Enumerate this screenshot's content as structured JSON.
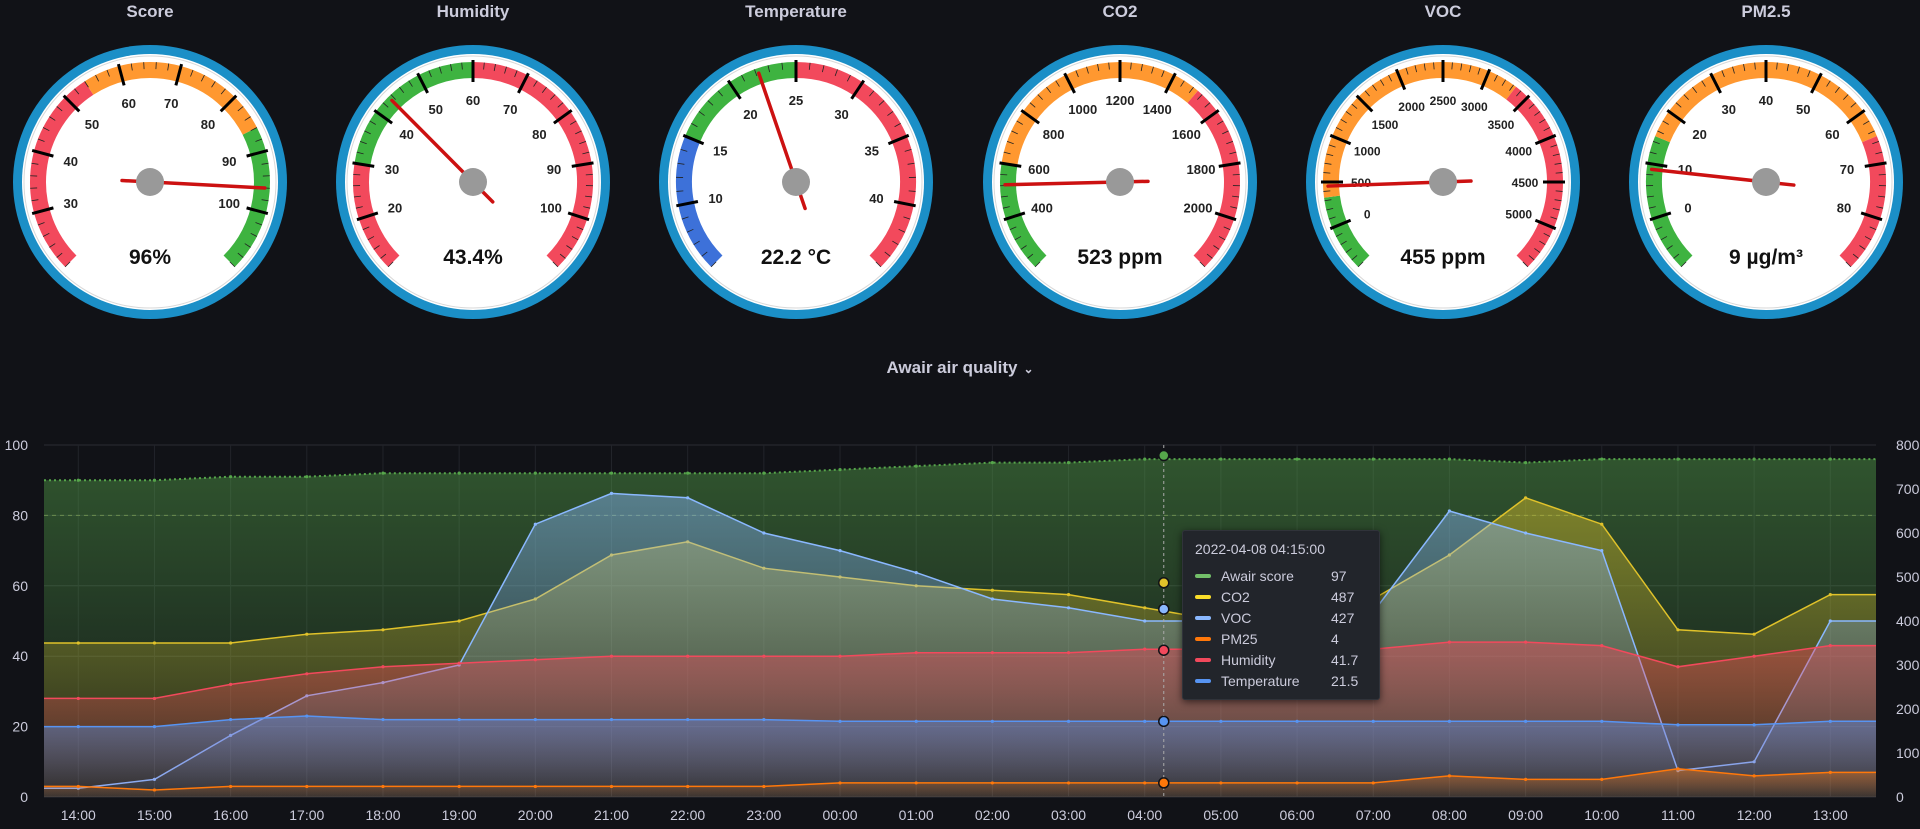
{
  "gauges": [
    {
      "key": "score",
      "title": "Score",
      "display": "96%",
      "value": 96,
      "min": 20,
      "max": 110,
      "labels": [
        30,
        40,
        50,
        60,
        70,
        80,
        90,
        100
      ],
      "bands": [
        {
          "from": 20,
          "to": 54,
          "color": "#f2495c"
        },
        {
          "from": 54,
          "to": 86,
          "color": "#ff9830"
        },
        {
          "from": 86,
          "to": 110,
          "color": "#3eb340"
        }
      ]
    },
    {
      "key": "humidity",
      "title": "Humidity",
      "display": "43.4%",
      "value": 43.4,
      "min": 10,
      "max": 110,
      "labels": [
        20,
        30,
        40,
        50,
        60,
        70,
        80,
        90,
        100
      ],
      "bands": [
        {
          "from": 10,
          "to": 30,
          "color": "#f2495c"
        },
        {
          "from": 30,
          "to": 60,
          "color": "#3eb340"
        },
        {
          "from": 60,
          "to": 110,
          "color": "#f2495c"
        }
      ]
    },
    {
      "key": "temperature",
      "title": "Temperature",
      "display": "22.2 °C",
      "value": 22.2,
      "min": 5,
      "max": 45,
      "labels": [
        10,
        15,
        20,
        25,
        30,
        35,
        40
      ],
      "bands": [
        {
          "from": 5,
          "to": 15,
          "color": "#3d71d9"
        },
        {
          "from": 15,
          "to": 25,
          "color": "#3eb340"
        },
        {
          "from": 25,
          "to": 45,
          "color": "#f2495c"
        }
      ]
    },
    {
      "key": "co2",
      "title": "CO2",
      "display": "523 ppm",
      "value": 523,
      "min": 200,
      "max": 2200,
      "labels": [
        400,
        600,
        800,
        1000,
        1200,
        1400,
        1600,
        1800,
        2000
      ],
      "bands": [
        {
          "from": 200,
          "to": 600,
          "color": "#3eb340"
        },
        {
          "from": 600,
          "to": 1500,
          "color": "#ff9830"
        },
        {
          "from": 1500,
          "to": 2200,
          "color": "#f2495c"
        }
      ]
    },
    {
      "key": "voc",
      "title": "VOC",
      "display": "455 ppm",
      "value": 455,
      "min": -500,
      "max": 5500,
      "labels": [
        0,
        500,
        1000,
        1500,
        2000,
        2500,
        3000,
        3500,
        4000,
        4500,
        5000
      ],
      "bands": [
        {
          "from": -500,
          "to": 333,
          "color": "#3eb340"
        },
        {
          "from": 333,
          "to": 3333,
          "color": "#ff9830"
        },
        {
          "from": 3333,
          "to": 5500,
          "color": "#f2495c"
        }
      ]
    },
    {
      "key": "pm25",
      "title": "PM2.5",
      "display": "9 µg/m³",
      "value": 9,
      "min": -10,
      "max": 90,
      "labels": [
        0,
        10,
        20,
        30,
        40,
        50,
        60,
        70,
        80
      ],
      "bands": [
        {
          "from": -10,
          "to": 15,
          "color": "#3eb340"
        },
        {
          "from": 15,
          "to": 65,
          "color": "#ff9830"
        },
        {
          "from": 65,
          "to": 90,
          "color": "#f2495c"
        }
      ]
    }
  ],
  "panel": {
    "title": "Awair air quality",
    "chevron": "⌄"
  },
  "colors": {
    "score": "#56a64b",
    "co2": "#e0c22a",
    "voc": "#8ab8ff",
    "pm25": "#ff780a",
    "humidity": "#f2495c",
    "temperature": "#5794f2"
  },
  "chart_data": {
    "type": "line",
    "x": [
      "14:00",
      "15:00",
      "16:00",
      "17:00",
      "18:00",
      "19:00",
      "20:00",
      "21:00",
      "22:00",
      "23:00",
      "00:00",
      "01:00",
      "02:00",
      "03:00",
      "04:00",
      "05:00",
      "06:00",
      "07:00",
      "08:00",
      "09:00",
      "10:00",
      "11:00",
      "12:00",
      "13:00"
    ],
    "y_left_ticks": [
      0,
      20,
      40,
      60,
      80,
      100
    ],
    "y_right_ticks": [
      0,
      100,
      200,
      300,
      400,
      500,
      600,
      700,
      800
    ],
    "ylim_left": [
      0,
      100
    ],
    "ylim_right": [
      0,
      800
    ],
    "series": [
      {
        "name": "Awair score",
        "axis": "left",
        "values": [
          90,
          90,
          91,
          91,
          92,
          92,
          92,
          92,
          92,
          92,
          93,
          94,
          95,
          95,
          96,
          96,
          96,
          96,
          96,
          95,
          96,
          96,
          96,
          96
        ]
      },
      {
        "name": "CO2",
        "axis": "right",
        "values": [
          350,
          350,
          350,
          370,
          380,
          400,
          450,
          550,
          580,
          520,
          500,
          480,
          470,
          460,
          430,
          400,
          390,
          450,
          550,
          680,
          620,
          380,
          370,
          460
        ]
      },
      {
        "name": "VOC",
        "axis": "right",
        "values": [
          20,
          40,
          140,
          230,
          260,
          300,
          620,
          690,
          680,
          600,
          560,
          510,
          450,
          430,
          400,
          400,
          390,
          420,
          650,
          600,
          560,
          60,
          80,
          400
        ]
      },
      {
        "name": "PM25",
        "axis": "left",
        "values": [
          3,
          2,
          3,
          3,
          3,
          3,
          3,
          3,
          3,
          3,
          4,
          4,
          4,
          4,
          4,
          4,
          4,
          4,
          6,
          5,
          5,
          8,
          6,
          7
        ]
      },
      {
        "name": "Humidity",
        "axis": "left",
        "values": [
          28,
          28,
          32,
          35,
          37,
          38,
          39,
          40,
          40,
          40,
          40,
          41,
          41,
          41,
          42,
          42,
          42,
          42,
          44,
          44,
          43,
          37,
          40,
          43
        ]
      },
      {
        "name": "Temperature",
        "axis": "left",
        "values": [
          20,
          20,
          22,
          23,
          22,
          22,
          22,
          22,
          22,
          22,
          21.5,
          21.5,
          21.5,
          21.5,
          21.5,
          21.5,
          21.5,
          21.5,
          21.5,
          21.5,
          21.5,
          20.5,
          20.5,
          21.5
        ]
      }
    ],
    "legend": "tooltip"
  },
  "tooltip": {
    "time": "2022-04-08 04:15:00",
    "rows": [
      {
        "name": "Awair score",
        "value": "97",
        "color": "#73bf69"
      },
      {
        "name": "CO2",
        "value": "487",
        "color": "#fade2a"
      },
      {
        "name": "VOC",
        "value": "427",
        "color": "#8ab8ff"
      },
      {
        "name": "PM25",
        "value": "4",
        "color": "#ff780a"
      },
      {
        "name": "Humidity",
        "value": "41.7",
        "color": "#f2495c"
      },
      {
        "name": "Temperature",
        "value": "21.5",
        "color": "#5794f2"
      }
    ]
  }
}
